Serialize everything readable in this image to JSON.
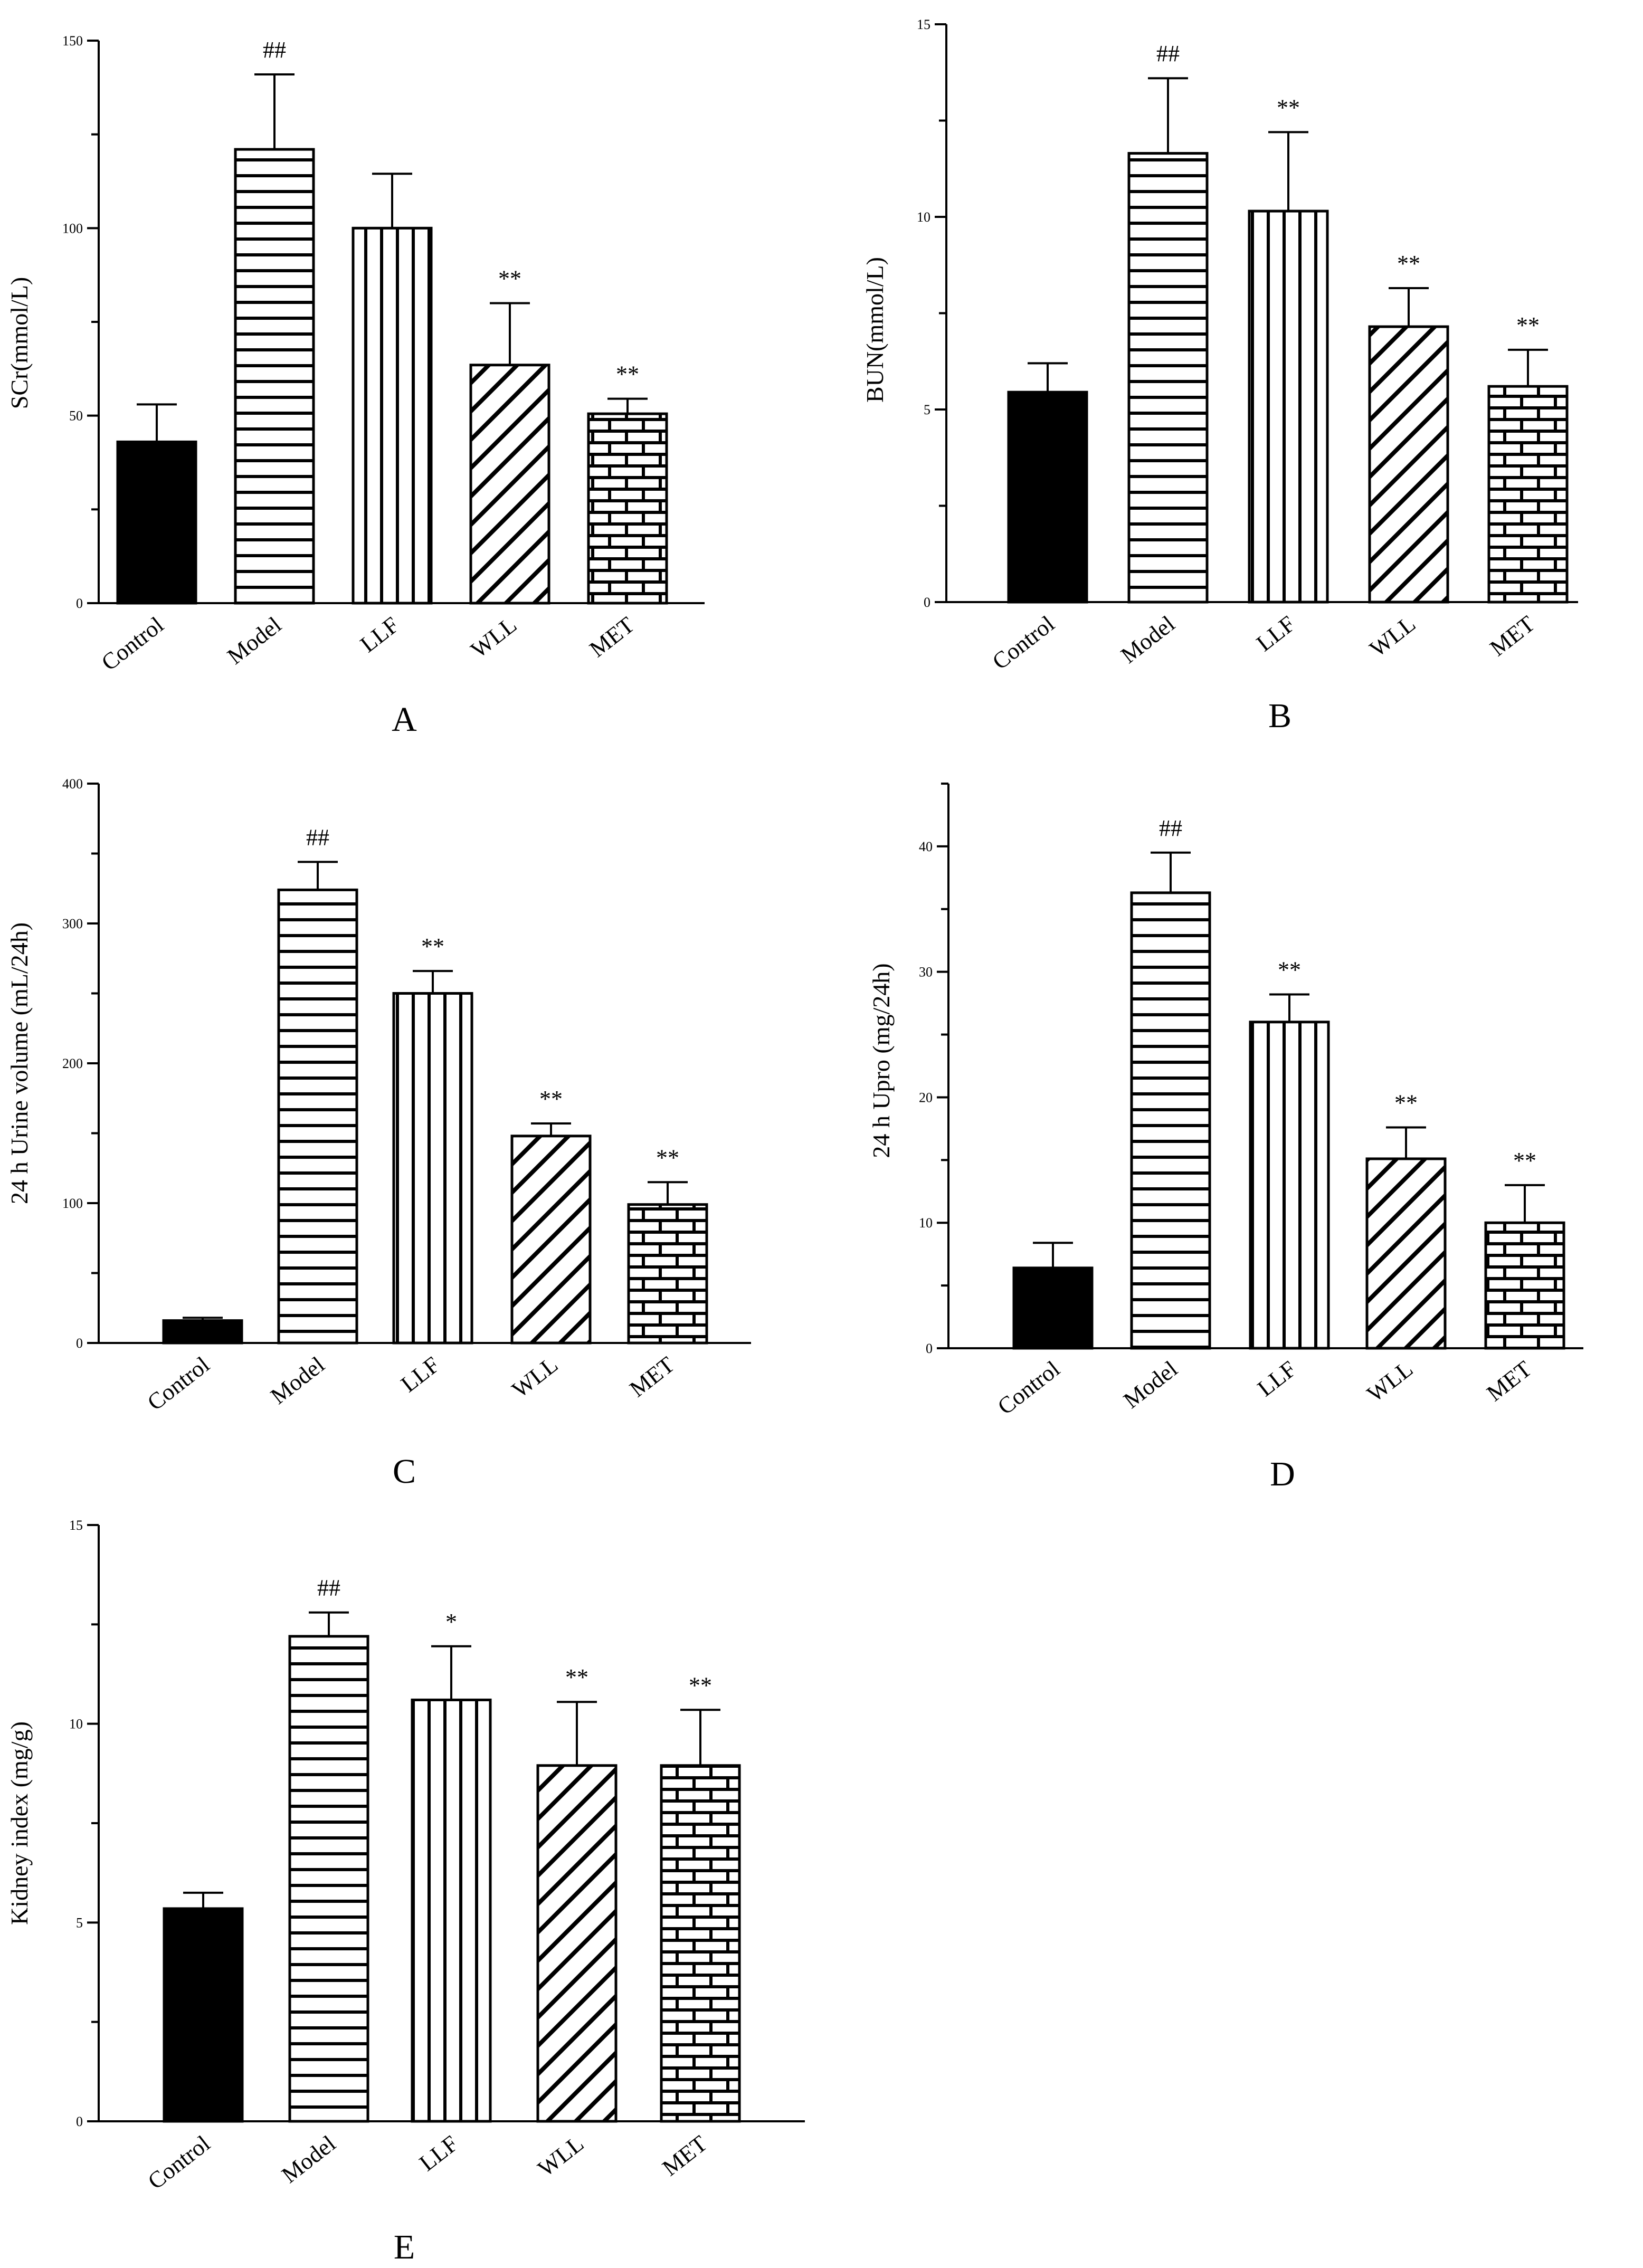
{
  "chart_data": [
    {
      "panel_label": "A",
      "type": "bar",
      "ylabel": "SCr(mmol/L)",
      "ylim": [
        0,
        150
      ],
      "yticks": [
        0,
        50,
        100,
        150
      ],
      "categories": [
        "Control",
        "Model",
        "LLF",
        "WLL",
        "MET"
      ],
      "values": [
        43,
        121,
        100,
        63.5,
        50.5
      ],
      "errors": [
        10,
        20,
        14.5,
        16.5,
        4
      ],
      "annotations": [
        "",
        "##",
        "",
        "**",
        "**"
      ]
    },
    {
      "panel_label": "B",
      "type": "bar",
      "ylabel": "BUN(mmol/L)",
      "ylim": [
        0,
        15
      ],
      "yticks": [
        0,
        5,
        10,
        15
      ],
      "categories": [
        "Control",
        "Model",
        "LLF",
        "WLL",
        "MET"
      ],
      "values": [
        5.45,
        11.65,
        10.15,
        7.15,
        5.6
      ],
      "errors": [
        0.75,
        1.95,
        2.05,
        1.0,
        0.95
      ],
      "annotations": [
        "",
        "##",
        "**",
        "**",
        "**"
      ]
    },
    {
      "panel_label": "C",
      "type": "bar",
      "ylabel": "24 h Urine volume (mL/24h)",
      "ylim": [
        0,
        400
      ],
      "yticks": [
        0,
        100,
        200,
        300,
        400
      ],
      "categories": [
        "Control",
        "Model",
        "LLF",
        "WLL",
        "MET"
      ],
      "values": [
        16,
        324,
        250,
        148,
        99
      ],
      "errors": [
        2,
        20,
        16,
        9,
        16
      ],
      "annotations": [
        "",
        "##",
        "**",
        "**",
        "**"
      ]
    },
    {
      "panel_label": "D",
      "type": "bar",
      "ylabel": "24 h Upro (mg/24h)",
      "ylim": [
        0,
        45
      ],
      "yticks": [
        0,
        10,
        20,
        30,
        40
      ],
      "categories": [
        "Control",
        "Model",
        "LLF",
        "WLL",
        "MET"
      ],
      "values": [
        6.4,
        36.3,
        26.0,
        15.1,
        10.0
      ],
      "errors": [
        2.0,
        3.2,
        2.2,
        2.5,
        3.0
      ],
      "annotations": [
        "",
        "##",
        "**",
        "**",
        "**"
      ]
    },
    {
      "panel_label": "E",
      "type": "bar",
      "ylabel": "Kidney index (mg/g)",
      "ylim": [
        0,
        15
      ],
      "yticks": [
        0,
        5,
        10,
        15
      ],
      "categories": [
        "Control",
        "Model",
        "LLF",
        "WLL",
        "MET"
      ],
      "values": [
        5.35,
        12.2,
        10.6,
        8.95,
        8.95
      ],
      "errors": [
        0.4,
        0.6,
        1.35,
        1.6,
        1.4
      ],
      "annotations": [
        "",
        "##",
        "*",
        "**",
        "**"
      ]
    }
  ]
}
